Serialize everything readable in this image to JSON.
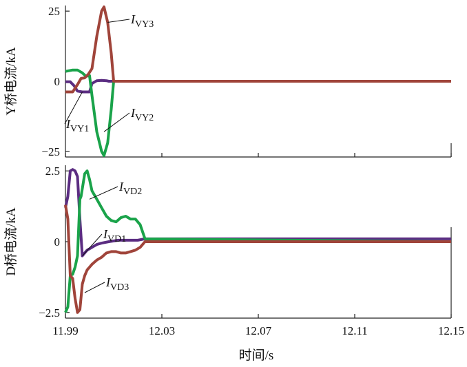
{
  "colors": {
    "purple": "#5b2d82",
    "green": "#1aa34a",
    "brown": "#a0443a",
    "axis": "#222222"
  },
  "chart_data": [
    {
      "type": "line",
      "ylabel": "Y桥电流/kA",
      "ylim": [
        -27,
        27
      ],
      "yticks": [
        {
          "value": 25,
          "label": "25"
        },
        {
          "value": 0,
          "label": "0"
        },
        {
          "value": -25,
          "label": "−25"
        }
      ],
      "series": [
        {
          "name": "VY1",
          "color": "purple",
          "x": [
            11.99,
            11.992,
            11.9935,
            11.995,
            11.997,
            11.9985,
            12.0,
            12.001,
            12.003,
            12.005,
            12.007,
            12.008,
            12.009,
            12.15
          ],
          "y": [
            -0.2,
            -0.2,
            -1.5,
            -3.5,
            -3.8,
            -3.8,
            -3.8,
            -0.8,
            0.2,
            0.3,
            0.2,
            0,
            0,
            0
          ]
        },
        {
          "name": "VY2",
          "color": "green",
          "x": [
            11.99,
            11.993,
            11.995,
            11.997,
            11.9985,
            12.0,
            12.001,
            12.003,
            12.005,
            12.006,
            12.0075,
            12.009,
            12.01,
            12.15
          ],
          "y": [
            3.5,
            4.0,
            4.0,
            3.0,
            1.8,
            2.0,
            -5.0,
            -18.0,
            -25.0,
            -26.5,
            -22.0,
            -10.0,
            0,
            0
          ]
        },
        {
          "name": "VY3",
          "color": "brown",
          "x": [
            11.99,
            11.993,
            11.995,
            11.9965,
            11.998,
            11.9995,
            12.001,
            12.003,
            12.005,
            12.006,
            12.0075,
            12.009,
            12.01,
            12.15
          ],
          "y": [
            -3.8,
            -3.8,
            -1.2,
            1.0,
            1.2,
            2.5,
            4.5,
            16.0,
            25.0,
            26.5,
            21.0,
            10.0,
            0,
            0
          ]
        }
      ],
      "annotations": [
        {
          "text": "I",
          "sub": "VY3",
          "target": [
            12.0075,
            21.0
          ]
        },
        {
          "text": "I",
          "sub": "VY2",
          "target": [
            12.006,
            -18.0
          ]
        },
        {
          "text": "I",
          "sub": "VY1",
          "target": [
            11.997,
            -3.8
          ]
        }
      ]
    },
    {
      "type": "line",
      "xlabel": "时间/s",
      "ylabel": "D桥电流/kA",
      "ylim": [
        -2.7,
        2.7
      ],
      "xlim": [
        11.99,
        12.15
      ],
      "xticks": [
        {
          "value": 11.99,
          "label": "11.99"
        },
        {
          "value": 12.03,
          "label": "12.03"
        },
        {
          "value": 12.07,
          "label": "12.07"
        },
        {
          "value": 12.11,
          "label": "12.11"
        },
        {
          "value": 12.15,
          "label": "12.15"
        }
      ],
      "yticks": [
        {
          "value": 2.5,
          "label": "2.5"
        },
        {
          "value": 0,
          "label": "0"
        },
        {
          "value": -2.5,
          "label": "−2.5"
        }
      ],
      "series": [
        {
          "name": "VD1",
          "color": "purple",
          "x": [
            11.99,
            11.991,
            11.992,
            11.993,
            11.994,
            11.995,
            11.996,
            11.997,
            11.998,
            11.999,
            12.0,
            12.001,
            12.002,
            12.003,
            12.005,
            12.008,
            12.012,
            12.016,
            12.02,
            12.023,
            12.15
          ],
          "y": [
            1.2,
            1.6,
            2.5,
            2.55,
            2.5,
            2.3,
            0.8,
            -0.5,
            -0.4,
            -0.3,
            -0.25,
            -0.2,
            -0.15,
            -0.1,
            -0.05,
            0,
            0.05,
            0.05,
            0.05,
            0.1,
            0.1
          ]
        },
        {
          "name": "VD2",
          "color": "green",
          "x": [
            11.99,
            11.991,
            11.992,
            11.993,
            11.994,
            11.995,
            11.996,
            11.9965,
            11.998,
            11.999,
            12.0,
            12.001,
            12.003,
            12.005,
            12.007,
            12.009,
            12.011,
            12.013,
            12.015,
            12.017,
            12.019,
            12.021,
            12.023,
            12.15
          ],
          "y": [
            -2.5,
            -2.3,
            -1.2,
            -1.15,
            -0.9,
            -0.5,
            1.5,
            1.6,
            2.4,
            2.5,
            2.2,
            1.8,
            1.5,
            1.2,
            0.9,
            0.75,
            0.7,
            0.85,
            0.9,
            0.8,
            0.8,
            0.6,
            0.1,
            0
          ]
        },
        {
          "name": "VD3",
          "color": "brown",
          "x": [
            11.99,
            11.991,
            11.992,
            11.993,
            11.994,
            11.995,
            11.996,
            11.997,
            11.998,
            11.999,
            12.0,
            12.001,
            12.003,
            12.005,
            12.007,
            12.009,
            12.011,
            12.013,
            12.015,
            12.017,
            12.019,
            12.021,
            12.023,
            12.15
          ],
          "y": [
            1.3,
            0.8,
            -1.2,
            -1.3,
            -2.0,
            -2.5,
            -2.4,
            -1.5,
            -1.2,
            -1.0,
            -0.9,
            -0.8,
            -0.65,
            -0.55,
            -0.4,
            -0.35,
            -0.35,
            -0.4,
            -0.4,
            -0.35,
            -0.3,
            -0.2,
            0,
            0
          ]
        }
      ],
      "annotations": [
        {
          "text": "I",
          "sub": "VD2",
          "target": [
            12.0,
            1.5
          ]
        },
        {
          "text": "I",
          "sub": "VD1",
          "target": [
            11.997,
            -0.5
          ]
        },
        {
          "text": "I",
          "sub": "VD3",
          "target": [
            11.998,
            -1.8
          ]
        }
      ]
    }
  ]
}
